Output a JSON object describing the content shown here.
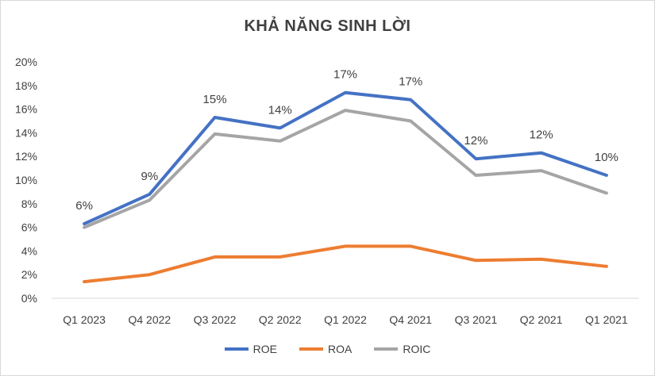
{
  "chart_data": {
    "type": "line",
    "title": "KHẢ NĂNG SINH LỜI",
    "categories": [
      "Q1 2023",
      "Q4 2022",
      "Q3 2022",
      "Q2 2022",
      "Q1 2022",
      "Q4 2021",
      "Q3 2021",
      "Q2 2021",
      "Q1 2021"
    ],
    "ylim": [
      0,
      20
    ],
    "yticks": [
      "0%",
      "2%",
      "4%",
      "6%",
      "8%",
      "10%",
      "12%",
      "14%",
      "16%",
      "18%",
      "20%"
    ],
    "grid": false,
    "legend_position": "bottom",
    "series": [
      {
        "name": "ROE",
        "color": "#4472c4",
        "values": [
          6.3,
          8.8,
          15.3,
          14.4,
          17.4,
          16.8,
          11.8,
          12.3,
          10.4
        ],
        "labels": [
          "6%",
          "9%",
          "15%",
          "14%",
          "17%",
          "17%",
          "12%",
          "12%",
          "10%"
        ]
      },
      {
        "name": "ROA",
        "color": "#ed7d31",
        "values": [
          1.4,
          2.0,
          3.5,
          3.5,
          4.4,
          4.4,
          3.2,
          3.3,
          2.7
        ]
      },
      {
        "name": "ROIC",
        "color": "#a5a5a5",
        "values": [
          6.0,
          8.3,
          13.9,
          13.3,
          15.9,
          15.0,
          10.4,
          10.8,
          8.9
        ]
      }
    ]
  }
}
